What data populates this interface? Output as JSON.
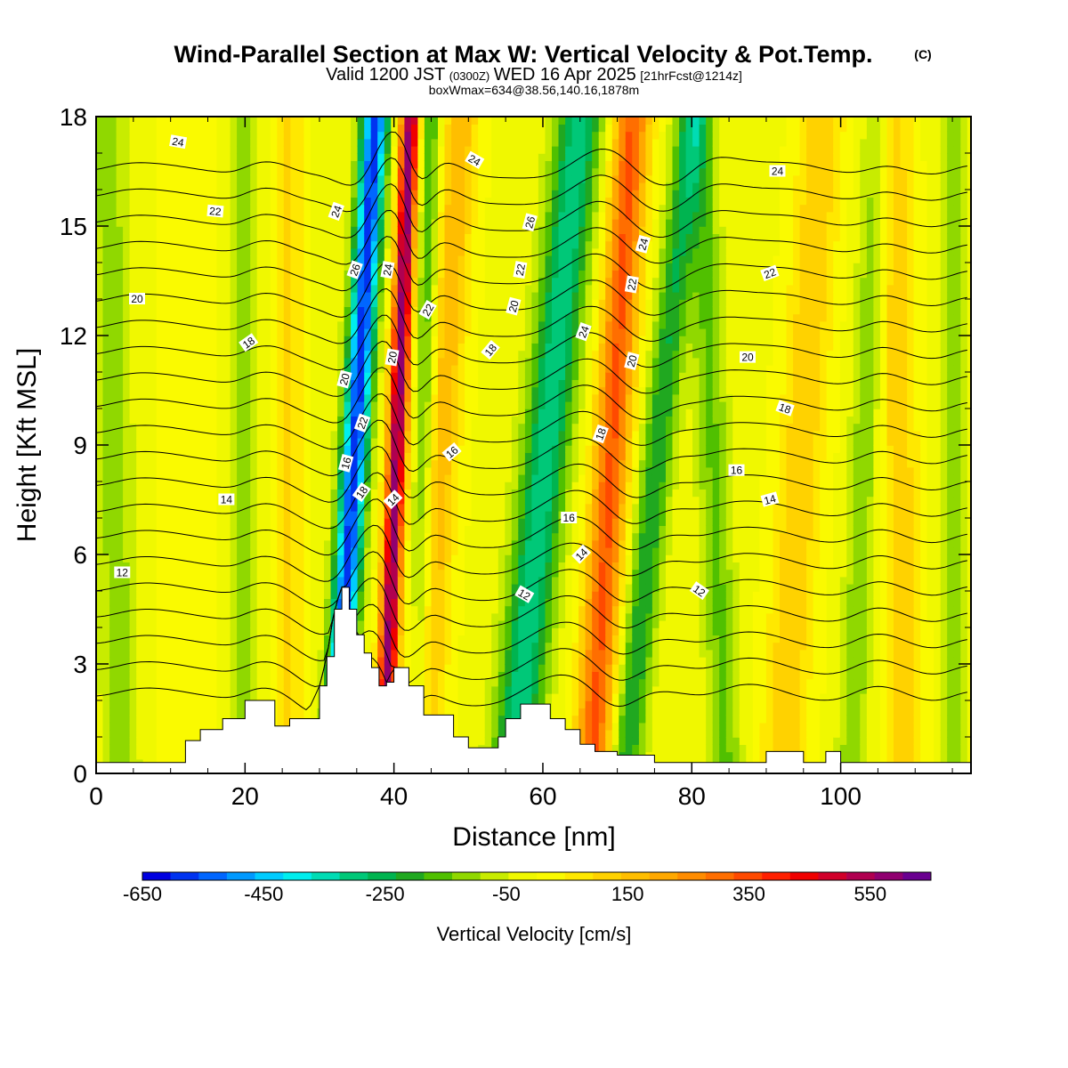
{
  "chart_data": {
    "type": "heatmap",
    "title": "Wind-Parallel Section at Max W: Vertical Velocity & Pot.Temp.",
    "title_mark": "(C)",
    "subtitle_parts": [
      "Valid 1200 JST",
      "(0300Z)",
      "WED 16 Apr 2025",
      "[21hrFcst@1214z]"
    ],
    "subtitle2": "boxWmax=634@38.56,140.16,1878m",
    "xlabel": "Distance [nm]",
    "ylabel": "Height [Kft MSL]",
    "xlim": [
      0,
      117.5
    ],
    "ylim": [
      0,
      18
    ],
    "x_ticks": [
      "0",
      "20",
      "40",
      "60",
      "80",
      "100"
    ],
    "x_tick_values": [
      0,
      20,
      40,
      60,
      80,
      100
    ],
    "y_ticks": [
      "0",
      "3",
      "6",
      "9",
      "12",
      "15",
      "18"
    ],
    "y_tick_values": [
      0,
      3,
      6,
      9,
      12,
      15,
      18
    ],
    "colorbar": {
      "label": "Vertical Velocity [cm/s]",
      "min": -650,
      "max": 650,
      "step": 50,
      "tick_labels": [
        "-650",
        "-450",
        "-250",
        "-50",
        "150",
        "350",
        "550"
      ],
      "tick_values": [
        -650,
        -450,
        -250,
        -50,
        150,
        350,
        550
      ],
      "colors": [
        "#0000e0",
        "#0033f0",
        "#0066ff",
        "#0099ff",
        "#00ccff",
        "#00eeee",
        "#00dcb4",
        "#00c878",
        "#00b450",
        "#20a820",
        "#50c000",
        "#90d800",
        "#c8ec00",
        "#f0f800",
        "#fafa00",
        "#ffe800",
        "#ffd200",
        "#ffbe00",
        "#ffa800",
        "#ff8c00",
        "#ff6e00",
        "#ff4a00",
        "#ff2000",
        "#f00000",
        "#d0002a",
        "#b00050",
        "#900070",
        "#6a0090"
      ]
    },
    "terrain_kft": [
      [
        0,
        0.3
      ],
      [
        5,
        0.3
      ],
      [
        10,
        0.3
      ],
      [
        12,
        0.9
      ],
      [
        14,
        1.2
      ],
      [
        17,
        1.5
      ],
      [
        20,
        2.0
      ],
      [
        22,
        2.0
      ],
      [
        24,
        1.3
      ],
      [
        26,
        1.5
      ],
      [
        28,
        1.5
      ],
      [
        30,
        2.4
      ],
      [
        31,
        3.2
      ],
      [
        32,
        4.5
      ],
      [
        33,
        5.1
      ],
      [
        34,
        4.5
      ],
      [
        35,
        3.8
      ],
      [
        36,
        3.3
      ],
      [
        37,
        2.9
      ],
      [
        38,
        2.4
      ],
      [
        39,
        2.5
      ],
      [
        40,
        2.9
      ],
      [
        41,
        2.9
      ],
      [
        42,
        2.4
      ],
      [
        44,
        1.6
      ],
      [
        46,
        1.6
      ],
      [
        48,
        1.0
      ],
      [
        50,
        0.7
      ],
      [
        52,
        0.7
      ],
      [
        54,
        1.0
      ],
      [
        55,
        1.5
      ],
      [
        57,
        1.9
      ],
      [
        59,
        1.9
      ],
      [
        61,
        1.5
      ],
      [
        63,
        1.2
      ],
      [
        65,
        0.8
      ],
      [
        67,
        0.6
      ],
      [
        70,
        0.5
      ],
      [
        75,
        0.3
      ],
      [
        80,
        0.3
      ],
      [
        88,
        0.3
      ],
      [
        90,
        0.6
      ],
      [
        92,
        0.6
      ],
      [
        95,
        0.3
      ],
      [
        97,
        0.3
      ],
      [
        98,
        0.6
      ],
      [
        99,
        0.6
      ],
      [
        100,
        0.3
      ],
      [
        110,
        0.3
      ],
      [
        117.5,
        0.3
      ]
    ],
    "wv_bands": [
      {
        "x0": 33.0,
        "slope": 0.3,
        "amp": -620,
        "width": 1.8
      },
      {
        "x0": 39.2,
        "slope": 0.2,
        "amp": 640,
        "width": 1.3
      },
      {
        "x0": 43.5,
        "slope": 0.1,
        "amp": -200,
        "width": 1.4
      },
      {
        "x0": 44.5,
        "slope": 0.3,
        "amp": 200,
        "width": 2.5
      },
      {
        "x0": 57.5,
        "slope": 0.5,
        "amp": -330,
        "width": 3.2
      },
      {
        "x0": 67.5,
        "slope": 0.3,
        "amp": 370,
        "width": 2.5
      },
      {
        "x0": 72.5,
        "slope": 0.5,
        "amp": -240,
        "width": 2.2
      },
      {
        "x0": 20.0,
        "slope": 0.0,
        "amp": -110,
        "width": 1.6
      },
      {
        "x0": 26.0,
        "slope": 0.0,
        "amp": 120,
        "width": 1.8
      },
      {
        "x0": 84.0,
        "slope": -0.2,
        "amp": -150,
        "width": 2.2
      },
      {
        "x0": 93.0,
        "slope": 0.3,
        "amp": 160,
        "width": 3.0
      },
      {
        "x0": 102.0,
        "slope": 0.2,
        "amp": -130,
        "width": 2.0
      },
      {
        "x0": 108.5,
        "slope": -0.1,
        "amp": 150,
        "width": 2.5
      },
      {
        "x0": 115.0,
        "slope": 0.0,
        "amp": -110,
        "width": 1.8
      },
      {
        "x0": 3.0,
        "slope": -0.1,
        "amp": -120,
        "width": 2.5
      },
      {
        "x0": 12.0,
        "slope": 0.0,
        "amp": 60,
        "width": 3.0
      }
    ],
    "theta_levels": [
      8,
      9,
      10,
      11,
      12,
      13,
      14,
      15,
      16,
      17,
      18,
      19,
      20,
      21,
      22,
      23,
      24,
      25,
      26,
      27,
      28
    ],
    "contour_labels": [
      {
        "text": "24",
        "x": 11,
        "y": 17.3,
        "rot": 10
      },
      {
        "text": "22",
        "x": 16,
        "y": 15.4,
        "rot": 5
      },
      {
        "text": "20",
        "x": 5.5,
        "y": 13.0,
        "rot": 0
      },
      {
        "text": "18",
        "x": 20.5,
        "y": 11.8,
        "rot": -35
      },
      {
        "text": "14",
        "x": 17.5,
        "y": 7.5,
        "rot": 0
      },
      {
        "text": "12",
        "x": 3.5,
        "y": 5.5,
        "rot": 0
      },
      {
        "text": "24",
        "x": 32.3,
        "y": 15.4,
        "rot": -70
      },
      {
        "text": "26",
        "x": 34.8,
        "y": 13.8,
        "rot": -70
      },
      {
        "text": "20",
        "x": 33.4,
        "y": 10.8,
        "rot": -75
      },
      {
        "text": "22",
        "x": 35.8,
        "y": 9.6,
        "rot": -70
      },
      {
        "text": "16",
        "x": 33.6,
        "y": 8.5,
        "rot": -75
      },
      {
        "text": "18",
        "x": 35.7,
        "y": 7.7,
        "rot": -55
      },
      {
        "text": "24",
        "x": 39.2,
        "y": 13.8,
        "rot": -80
      },
      {
        "text": "20",
        "x": 39.8,
        "y": 11.4,
        "rot": -80
      },
      {
        "text": "14",
        "x": 39.9,
        "y": 7.5,
        "rot": -45
      },
      {
        "text": "22",
        "x": 44.6,
        "y": 12.7,
        "rot": -60
      },
      {
        "text": "18",
        "x": 53.0,
        "y": 11.6,
        "rot": -50
      },
      {
        "text": "16",
        "x": 47.8,
        "y": 8.8,
        "rot": -40
      },
      {
        "text": "24",
        "x": 50.8,
        "y": 16.8,
        "rot": 30
      },
      {
        "text": "26",
        "x": 58.3,
        "y": 15.1,
        "rot": -75
      },
      {
        "text": "22",
        "x": 57.0,
        "y": 13.8,
        "rot": -80
      },
      {
        "text": "20",
        "x": 56.1,
        "y": 12.8,
        "rot": -75
      },
      {
        "text": "24",
        "x": 65.5,
        "y": 12.1,
        "rot": -70
      },
      {
        "text": "18",
        "x": 67.8,
        "y": 9.3,
        "rot": -70
      },
      {
        "text": "16",
        "x": 63.5,
        "y": 7.0,
        "rot": 0
      },
      {
        "text": "14",
        "x": 65.2,
        "y": 6.0,
        "rot": -45
      },
      {
        "text": "12",
        "x": 57.5,
        "y": 4.9,
        "rot": 30
      },
      {
        "text": "24",
        "x": 73.5,
        "y": 14.5,
        "rot": -75
      },
      {
        "text": "22",
        "x": 72.0,
        "y": 13.4,
        "rot": -80
      },
      {
        "text": "20",
        "x": 72.0,
        "y": 11.3,
        "rot": -75
      },
      {
        "text": "24",
        "x": 91.5,
        "y": 16.5,
        "rot": 0
      },
      {
        "text": "22",
        "x": 90.5,
        "y": 13.7,
        "rot": -20
      },
      {
        "text": "20",
        "x": 87.5,
        "y": 11.4,
        "rot": 0
      },
      {
        "text": "18",
        "x": 92.5,
        "y": 10.0,
        "rot": 20
      },
      {
        "text": "16",
        "x": 86.0,
        "y": 8.3,
        "rot": 0
      },
      {
        "text": "14",
        "x": 90.5,
        "y": 7.5,
        "rot": -15
      },
      {
        "text": "12",
        "x": 81.0,
        "y": 5.0,
        "rot": 35
      }
    ]
  }
}
